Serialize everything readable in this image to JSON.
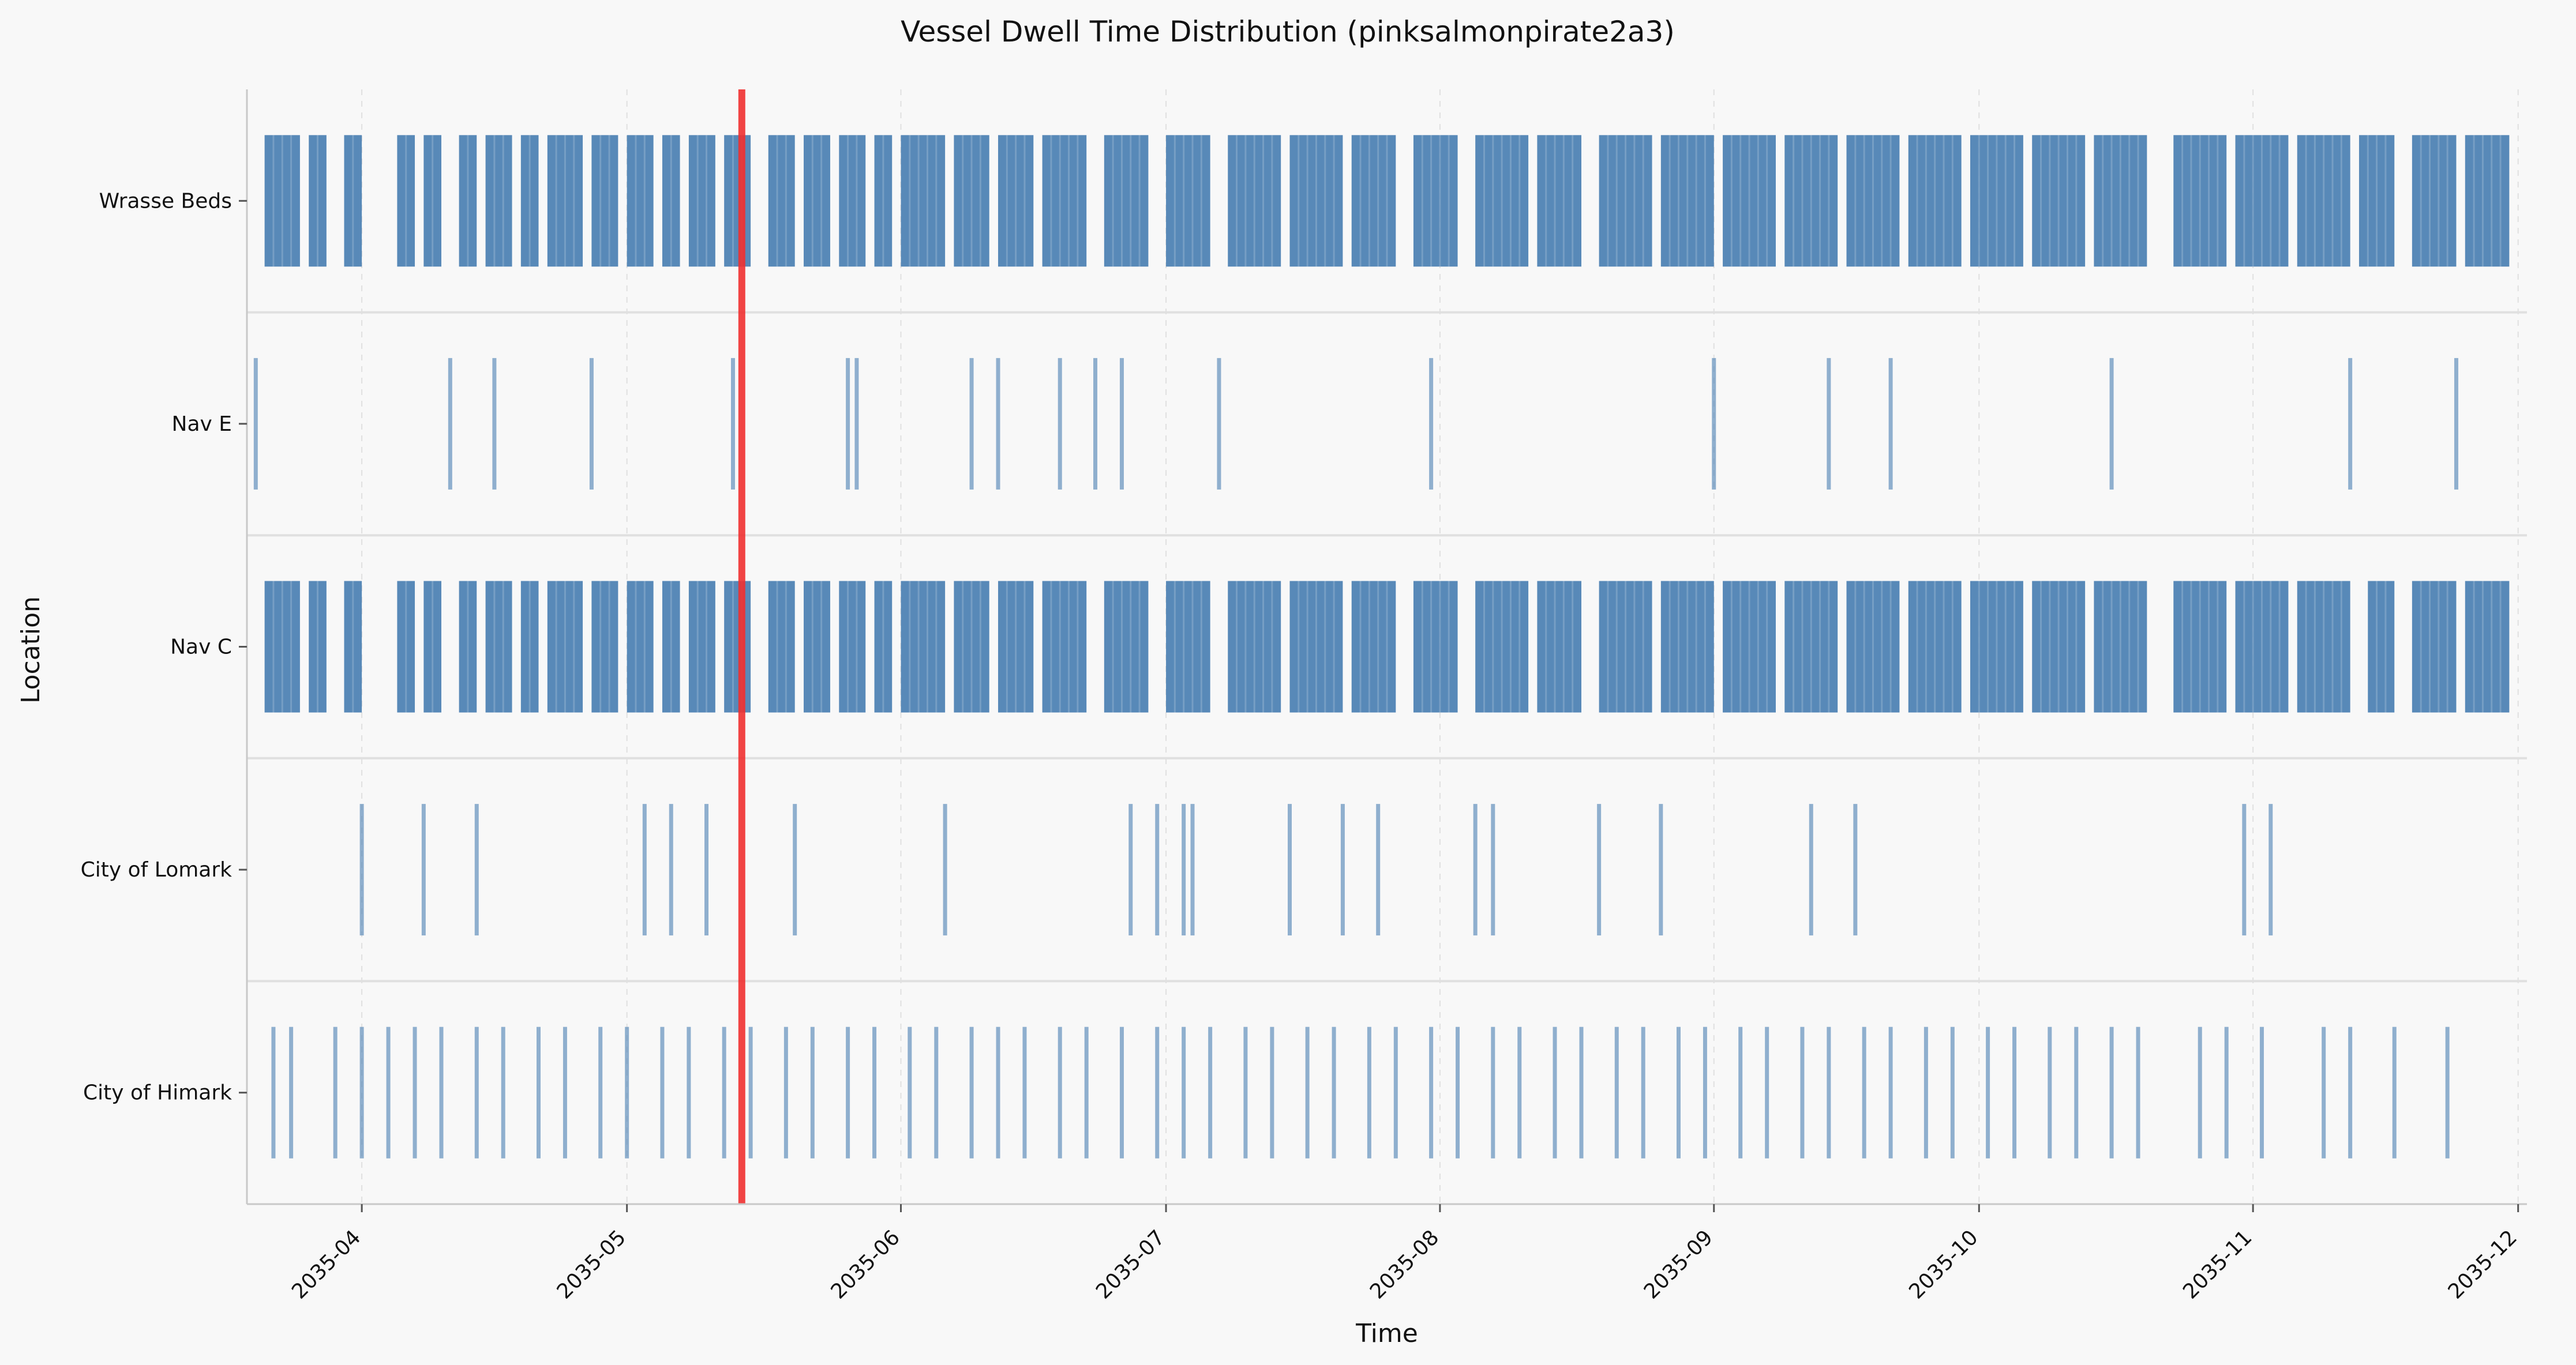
{
  "chart_data": {
    "type": "timeline",
    "title": "Vessel Dwell Time Distribution (pinksalmonpirate2a3)",
    "xlabel": "Time",
    "ylabel": "Location",
    "x_range": [
      "2035-03-19",
      "2035-12-02"
    ],
    "x_ticks": [
      "2035-04",
      "2035-05",
      "2035-06",
      "2035-07",
      "2035-08",
      "2035-09",
      "2035-10",
      "2035-11",
      "2035-12"
    ],
    "categories": [
      "Wrasse Beds",
      "Nav E",
      "Nav C",
      "City of Lomark",
      "City of Himark"
    ],
    "marker_date": "2035-05-14",
    "colors": {
      "bar": "#4a7fb2",
      "marker": "#f03030",
      "grid": "#e0e0e0",
      "background": "#f8f8f8"
    },
    "grid": true,
    "series": [
      {
        "location": "Wrasse Beds",
        "spans": [
          [
            "2035-03-21",
            "2035-03-25"
          ],
          [
            "2035-03-26",
            "2035-03-28"
          ],
          [
            "2035-03-30",
            "2035-04-01"
          ],
          [
            "2035-04-05",
            "2035-04-07"
          ],
          [
            "2035-04-08",
            "2035-04-10"
          ],
          [
            "2035-04-12",
            "2035-04-14"
          ],
          [
            "2035-04-15",
            "2035-04-18"
          ],
          [
            "2035-04-19",
            "2035-04-21"
          ],
          [
            "2035-04-22",
            "2035-04-26"
          ],
          [
            "2035-04-27",
            "2035-04-30"
          ],
          [
            "2035-05-01",
            "2035-05-04"
          ],
          [
            "2035-05-05",
            "2035-05-07"
          ],
          [
            "2035-05-08",
            "2035-05-11"
          ],
          [
            "2035-05-12",
            "2035-05-15"
          ],
          [
            "2035-05-17",
            "2035-05-20"
          ],
          [
            "2035-05-21",
            "2035-05-24"
          ],
          [
            "2035-05-25",
            "2035-05-28"
          ],
          [
            "2035-05-29",
            "2035-05-31"
          ],
          [
            "2035-06-01",
            "2035-06-06"
          ],
          [
            "2035-06-07",
            "2035-06-11"
          ],
          [
            "2035-06-12",
            "2035-06-16"
          ],
          [
            "2035-06-17",
            "2035-06-22"
          ],
          [
            "2035-06-24",
            "2035-06-29"
          ],
          [
            "2035-07-01",
            "2035-07-06"
          ],
          [
            "2035-07-08",
            "2035-07-14"
          ],
          [
            "2035-07-15",
            "2035-07-21"
          ],
          [
            "2035-07-22",
            "2035-07-27"
          ],
          [
            "2035-07-29",
            "2035-08-03"
          ],
          [
            "2035-08-05",
            "2035-08-11"
          ],
          [
            "2035-08-12",
            "2035-08-17"
          ],
          [
            "2035-08-19",
            "2035-08-25"
          ],
          [
            "2035-08-26",
            "2035-09-01"
          ],
          [
            "2035-09-02",
            "2035-09-08"
          ],
          [
            "2035-09-09",
            "2035-09-15"
          ],
          [
            "2035-09-16",
            "2035-09-22"
          ],
          [
            "2035-09-23",
            "2035-09-29"
          ],
          [
            "2035-09-30",
            "2035-10-06"
          ],
          [
            "2035-10-07",
            "2035-10-13"
          ],
          [
            "2035-10-14",
            "2035-10-20"
          ],
          [
            "2035-10-23",
            "2035-10-29"
          ],
          [
            "2035-10-30",
            "2035-11-05"
          ],
          [
            "2035-11-06",
            "2035-11-12"
          ],
          [
            "2035-11-13",
            "2035-11-17"
          ],
          [
            "2035-11-19",
            "2035-11-24"
          ],
          [
            "2035-11-25",
            "2035-11-30"
          ]
        ]
      },
      {
        "location": "Nav E",
        "events": [
          "2035-03-20",
          "2035-04-11",
          "2035-04-16",
          "2035-04-27",
          "2035-05-13",
          "2035-05-26",
          "2035-05-27",
          "2035-06-09",
          "2035-06-12",
          "2035-06-19",
          "2035-06-23",
          "2035-06-26",
          "2035-07-07",
          "2035-07-31",
          "2035-09-01",
          "2035-09-14",
          "2035-09-21",
          "2035-10-16",
          "2035-11-12",
          "2035-11-24"
        ]
      },
      {
        "location": "Nav C",
        "spans": [
          [
            "2035-03-21",
            "2035-03-25"
          ],
          [
            "2035-03-26",
            "2035-03-28"
          ],
          [
            "2035-03-30",
            "2035-04-01"
          ],
          [
            "2035-04-05",
            "2035-04-07"
          ],
          [
            "2035-04-08",
            "2035-04-10"
          ],
          [
            "2035-04-12",
            "2035-04-14"
          ],
          [
            "2035-04-15",
            "2035-04-18"
          ],
          [
            "2035-04-19",
            "2035-04-21"
          ],
          [
            "2035-04-22",
            "2035-04-26"
          ],
          [
            "2035-04-27",
            "2035-04-30"
          ],
          [
            "2035-05-01",
            "2035-05-04"
          ],
          [
            "2035-05-05",
            "2035-05-07"
          ],
          [
            "2035-05-08",
            "2035-05-11"
          ],
          [
            "2035-05-12",
            "2035-05-15"
          ],
          [
            "2035-05-17",
            "2035-05-20"
          ],
          [
            "2035-05-21",
            "2035-05-24"
          ],
          [
            "2035-05-25",
            "2035-05-28"
          ],
          [
            "2035-05-29",
            "2035-05-31"
          ],
          [
            "2035-06-01",
            "2035-06-06"
          ],
          [
            "2035-06-07",
            "2035-06-11"
          ],
          [
            "2035-06-12",
            "2035-06-16"
          ],
          [
            "2035-06-17",
            "2035-06-22"
          ],
          [
            "2035-06-24",
            "2035-06-29"
          ],
          [
            "2035-07-01",
            "2035-07-06"
          ],
          [
            "2035-07-08",
            "2035-07-14"
          ],
          [
            "2035-07-15",
            "2035-07-21"
          ],
          [
            "2035-07-22",
            "2035-07-27"
          ],
          [
            "2035-07-29",
            "2035-08-03"
          ],
          [
            "2035-08-05",
            "2035-08-11"
          ],
          [
            "2035-08-12",
            "2035-08-17"
          ],
          [
            "2035-08-19",
            "2035-08-25"
          ],
          [
            "2035-08-26",
            "2035-09-01"
          ],
          [
            "2035-09-02",
            "2035-09-08"
          ],
          [
            "2035-09-09",
            "2035-09-15"
          ],
          [
            "2035-09-16",
            "2035-09-22"
          ],
          [
            "2035-09-23",
            "2035-09-29"
          ],
          [
            "2035-09-30",
            "2035-10-06"
          ],
          [
            "2035-10-07",
            "2035-10-13"
          ],
          [
            "2035-10-14",
            "2035-10-20"
          ],
          [
            "2035-10-23",
            "2035-10-29"
          ],
          [
            "2035-10-30",
            "2035-11-05"
          ],
          [
            "2035-11-06",
            "2035-11-12"
          ],
          [
            "2035-11-14",
            "2035-11-17"
          ],
          [
            "2035-11-19",
            "2035-11-24"
          ],
          [
            "2035-11-25",
            "2035-11-30"
          ]
        ]
      },
      {
        "location": "City of Lomark",
        "events": [
          "2035-04-01",
          "2035-04-08",
          "2035-04-14",
          "2035-05-03",
          "2035-05-06",
          "2035-05-10",
          "2035-05-20",
          "2035-06-06",
          "2035-06-27",
          "2035-06-30",
          "2035-07-03",
          "2035-07-04",
          "2035-07-15",
          "2035-07-21",
          "2035-07-25",
          "2035-08-05",
          "2035-08-07",
          "2035-08-19",
          "2035-08-26",
          "2035-09-12",
          "2035-09-17",
          "2035-10-31",
          "2035-11-03"
        ]
      },
      {
        "location": "City of Himark",
        "events": [
          "2035-03-22",
          "2035-03-24",
          "2035-03-29",
          "2035-04-01",
          "2035-04-04",
          "2035-04-07",
          "2035-04-10",
          "2035-04-14",
          "2035-04-17",
          "2035-04-21",
          "2035-04-24",
          "2035-04-28",
          "2035-05-01",
          "2035-05-05",
          "2035-05-08",
          "2035-05-12",
          "2035-05-15",
          "2035-05-19",
          "2035-05-22",
          "2035-05-26",
          "2035-05-29",
          "2035-06-02",
          "2035-06-05",
          "2035-06-09",
          "2035-06-12",
          "2035-06-15",
          "2035-06-19",
          "2035-06-22",
          "2035-06-26",
          "2035-06-30",
          "2035-07-03",
          "2035-07-06",
          "2035-07-10",
          "2035-07-13",
          "2035-07-17",
          "2035-07-20",
          "2035-07-24",
          "2035-07-27",
          "2035-07-31",
          "2035-08-03",
          "2035-08-07",
          "2035-08-10",
          "2035-08-14",
          "2035-08-17",
          "2035-08-21",
          "2035-08-24",
          "2035-08-28",
          "2035-08-31",
          "2035-09-04",
          "2035-09-07",
          "2035-09-11",
          "2035-09-14",
          "2035-09-18",
          "2035-09-21",
          "2035-09-25",
          "2035-09-28",
          "2035-10-02",
          "2035-10-05",
          "2035-10-09",
          "2035-10-12",
          "2035-10-16",
          "2035-10-19",
          "2035-10-26",
          "2035-10-29",
          "2035-11-02",
          "2035-11-09",
          "2035-11-12",
          "2035-11-17",
          "2035-11-23"
        ]
      }
    ]
  }
}
